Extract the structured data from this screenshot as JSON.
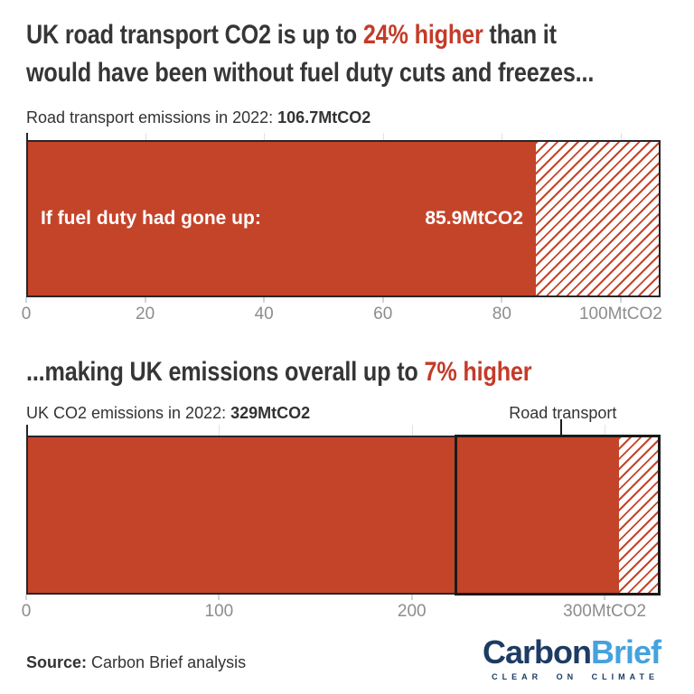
{
  "title1": {
    "pre": "UK road transport CO2 is up to ",
    "highlight": "24% higher",
    "post": " than it",
    "line2": "would have been without fuel duty cuts and freezes..."
  },
  "title2": {
    "pre": "...making UK emissions overall up to ",
    "highlight": "7% higher"
  },
  "footer": {
    "source_label": "Source:",
    "source_text": " Carbon Brief analysis",
    "logo": {
      "part1": "Carbon",
      "part2": "Brief",
      "tagline": "CLEAR ON CLIMATE"
    }
  },
  "colors": {
    "background": "#ffffff",
    "title_dark": "#363636",
    "accent_red": "#c43b28",
    "bar_red": "#c4442a",
    "axis_dark": "#26262a",
    "box_black": "#1a1a1a",
    "grid_gray": "#e2e2e2",
    "tick_gray": "#8d8d8d",
    "tick_mark": "#ccd6de",
    "text_dark": "#333333",
    "logo_navy": "#1d3b63",
    "logo_blue": "#45a2de"
  },
  "chart_data": [
    {
      "type": "bar",
      "orientation": "horizontal",
      "subtitle": {
        "text": "Road transport emissions in 2022: ",
        "value": "106.7MtCO2"
      },
      "axis_max": 106.7,
      "xlim": [
        0,
        106.7
      ],
      "x_ticks": [
        0,
        20,
        40,
        60,
        80,
        100
      ],
      "x_tick_labels": [
        "0",
        "20",
        "40",
        "60",
        "80",
        "100MtCO2"
      ],
      "grid": true,
      "bar": {
        "total": 106.7,
        "segments": [
          {
            "name": "if-fuel-duty-had-gone-up",
            "value": 85.9,
            "style": "solid",
            "label": "If fuel duty had gone up:",
            "value_label": "85.9MtCO2"
          },
          {
            "name": "extra-emissions-from-fuel-duty-cuts",
            "value": 20.8,
            "style": "hatched"
          }
        ]
      }
    },
    {
      "type": "bar",
      "orientation": "horizontal",
      "subtitle": {
        "text": "UK CO2 emissions in 2022: ",
        "value": "329MtCO2"
      },
      "axis_max": 329,
      "xlim": [
        0,
        329
      ],
      "x_ticks": [
        0,
        100,
        200,
        300
      ],
      "x_tick_labels": [
        "0",
        "100",
        "200",
        "300MtCO2"
      ],
      "grid": true,
      "bar": {
        "total": 329,
        "segments": [
          {
            "name": "uk-co2-excluding-extra",
            "value": 308.2,
            "style": "solid"
          },
          {
            "name": "extra-emissions-from-fuel-duty-cuts",
            "value": 20.8,
            "style": "hatched"
          }
        ]
      },
      "annotation": {
        "label": "Road transport",
        "box_from": 222.3,
        "box_to": 329,
        "connector_x": 278.3
      }
    }
  ]
}
